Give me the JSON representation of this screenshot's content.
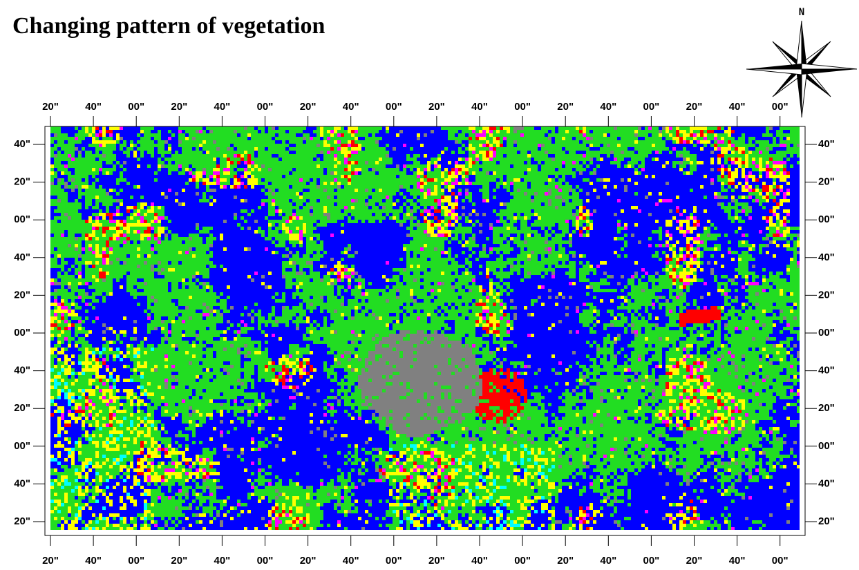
{
  "title": "Changing pattern of vegetation",
  "compass": {
    "label": "N"
  },
  "map": {
    "top_labels": [
      "20\"",
      "40\"",
      "00\"",
      "20\"",
      "40\"",
      "00\"",
      "20\"",
      "40\"",
      "00\"",
      "20\"",
      "40\"",
      "00\"",
      "20\"",
      "40\"",
      "00\"",
      "20\"",
      "40\"",
      "00\""
    ],
    "bottom_labels": [
      "20\"",
      "40\"",
      "00\"",
      "20\"",
      "40\"",
      "00\"",
      "20\"",
      "40\"",
      "00\"",
      "20\"",
      "40\"",
      "00\"",
      "20\"",
      "40\"",
      "00\"",
      "20\"",
      "40\"",
      "00\""
    ],
    "left_labels": [
      "40\"",
      "20\"",
      "00\"",
      "40\"",
      "20\"",
      "00\"",
      "40\"",
      "20\"",
      "00\"",
      "40\"",
      "20\""
    ],
    "right_labels": [
      "40\"",
      "20\"",
      "00\"",
      "40\"",
      "20\"",
      "00\"",
      "40\"",
      "20\"",
      "00\"",
      "40\"",
      "20\""
    ]
  }
}
